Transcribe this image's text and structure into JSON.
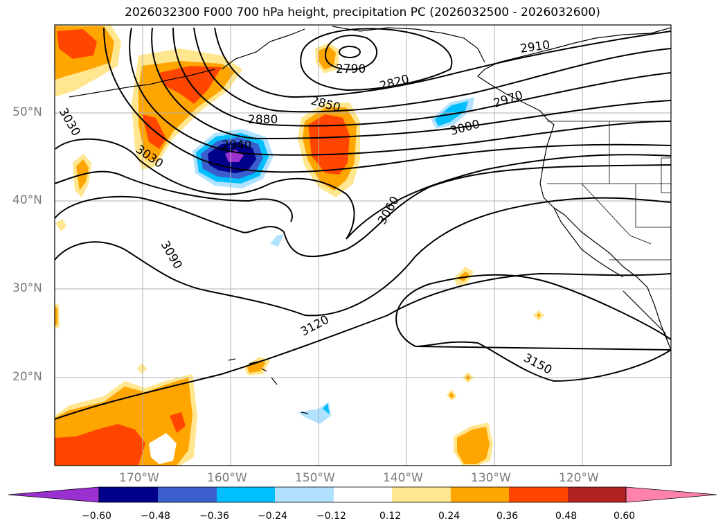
{
  "title": "2026032300 F000 700 hPa height, precipitation PC (2026032500 - 2026032600)",
  "lat_ticks": [
    "50°N",
    "40°N",
    "30°N",
    "20°N"
  ],
  "lon_ticks": [
    "170°W",
    "160°W",
    "150°W",
    "140°W",
    "130°W",
    "120°W"
  ],
  "contour_labels": [
    "2790",
    "2820",
    "2850",
    "2880",
    "2910",
    "2940",
    "2970",
    "3000",
    "3030",
    "3030",
    "3060",
    "3090",
    "3120",
    "3150"
  ],
  "colorbar": {
    "labels": [
      "−0.60",
      "−0.48",
      "−0.36",
      "−0.24",
      "−0.12",
      "0.12",
      "0.24",
      "0.36",
      "0.48",
      "0.60"
    ],
    "colors": [
      "#9b30d0",
      "#00008b",
      "#3a5fcd",
      "#00bfff",
      "#b0e2ff",
      "#ffffff",
      "#ffe68f",
      "#ffa500",
      "#ff4500",
      "#b22222",
      "#ff82ab"
    ]
  },
  "colors": {
    "coast": "#000000",
    "grid": "#b0b0b0",
    "contour": "#000000"
  }
}
